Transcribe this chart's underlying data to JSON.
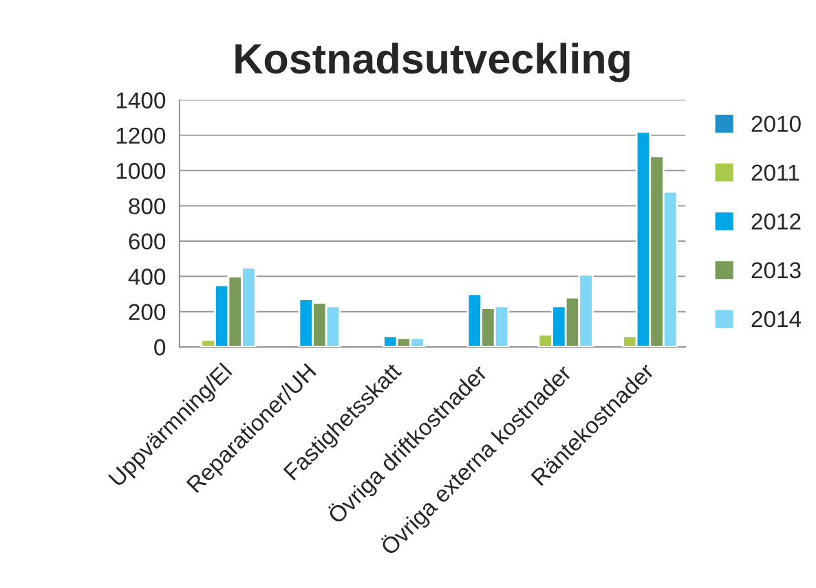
{
  "chart_data": {
    "type": "bar",
    "title": "Kostnadsutveckling",
    "categories": [
      "Uppvärmning/El",
      "Reparationer/UH",
      "Fastighetsskatt",
      "Övriga driftkostnader",
      "Övriga externa kostnader",
      "Räntekostnader"
    ],
    "series": [
      {
        "name": "2010",
        "color": "#1f8fc8",
        "values": [
          null,
          null,
          null,
          null,
          null,
          null
        ]
      },
      {
        "name": "2011",
        "color": "#a9c94a",
        "values": [
          40,
          null,
          null,
          null,
          70,
          60
        ]
      },
      {
        "name": "2012",
        "color": "#00a6e6",
        "values": [
          350,
          270,
          60,
          300,
          230,
          1220
        ]
      },
      {
        "name": "2013",
        "color": "#7a9a5a",
        "values": [
          400,
          250,
          50,
          220,
          280,
          1080
        ]
      },
      {
        "name": "2014",
        "color": "#7fd6f5",
        "values": [
          450,
          230,
          50,
          230,
          410,
          880
        ]
      }
    ],
    "ylim": [
      0,
      1400
    ],
    "yticks": [
      0,
      200,
      400,
      600,
      800,
      1000,
      1200,
      1400
    ],
    "grid": "y",
    "legend": "right"
  }
}
